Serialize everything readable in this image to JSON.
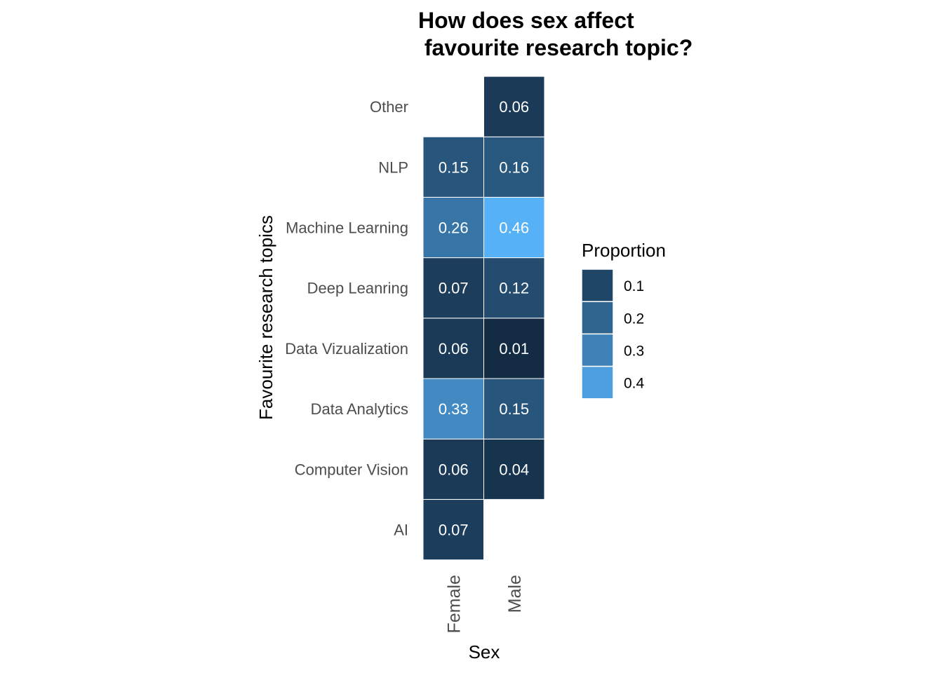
{
  "chart_data": {
    "type": "heatmap",
    "title": [
      "How does sex affect",
      " favourite research topic?"
    ],
    "xlabel": "Sex",
    "ylabel": "Favourite research topics",
    "x_categories": [
      "Female",
      "Male"
    ],
    "y_categories": [
      "AI",
      "Computer Vision",
      "Data Analytics",
      "Data Vizualization",
      "Deep Leanring",
      "Machine Learning",
      "NLP",
      "Other"
    ],
    "cells": [
      {
        "x": "Female",
        "y": "AI",
        "value": 0.07,
        "label": "0.07"
      },
      {
        "x": "Female",
        "y": "Computer Vision",
        "value": 0.06,
        "label": "0.06"
      },
      {
        "x": "Male",
        "y": "Computer Vision",
        "value": 0.04,
        "label": "0.04"
      },
      {
        "x": "Female",
        "y": "Data Analytics",
        "value": 0.33,
        "label": "0.33"
      },
      {
        "x": "Male",
        "y": "Data Analytics",
        "value": 0.15,
        "label": "0.15"
      },
      {
        "x": "Female",
        "y": "Data Vizualization",
        "value": 0.06,
        "label": "0.06"
      },
      {
        "x": "Male",
        "y": "Data Vizualization",
        "value": 0.01,
        "label": "0.01"
      },
      {
        "x": "Female",
        "y": "Deep Leanring",
        "value": 0.07,
        "label": "0.07"
      },
      {
        "x": "Male",
        "y": "Deep Leanring",
        "value": 0.12,
        "label": "0.12"
      },
      {
        "x": "Female",
        "y": "Machine Learning",
        "value": 0.26,
        "label": "0.26"
      },
      {
        "x": "Male",
        "y": "Machine Learning",
        "value": 0.46,
        "label": "0.46"
      },
      {
        "x": "Female",
        "y": "NLP",
        "value": 0.15,
        "label": "0.15"
      },
      {
        "x": "Male",
        "y": "NLP",
        "value": 0.16,
        "label": "0.16"
      },
      {
        "x": "Male",
        "y": "Other",
        "value": 0.06,
        "label": "0.06"
      }
    ],
    "color_scale": {
      "low": "#132b43",
      "high": "#56b1f7",
      "min": 0.01,
      "max": 0.46
    },
    "legend": {
      "title": "Proportion",
      "placement": "right",
      "entries": [
        {
          "value": 0.1,
          "label": "0.1"
        },
        {
          "value": 0.2,
          "label": "0.2"
        },
        {
          "value": 0.3,
          "label": "0.3"
        },
        {
          "value": 0.4,
          "label": "0.4"
        }
      ]
    },
    "grid": false
  }
}
